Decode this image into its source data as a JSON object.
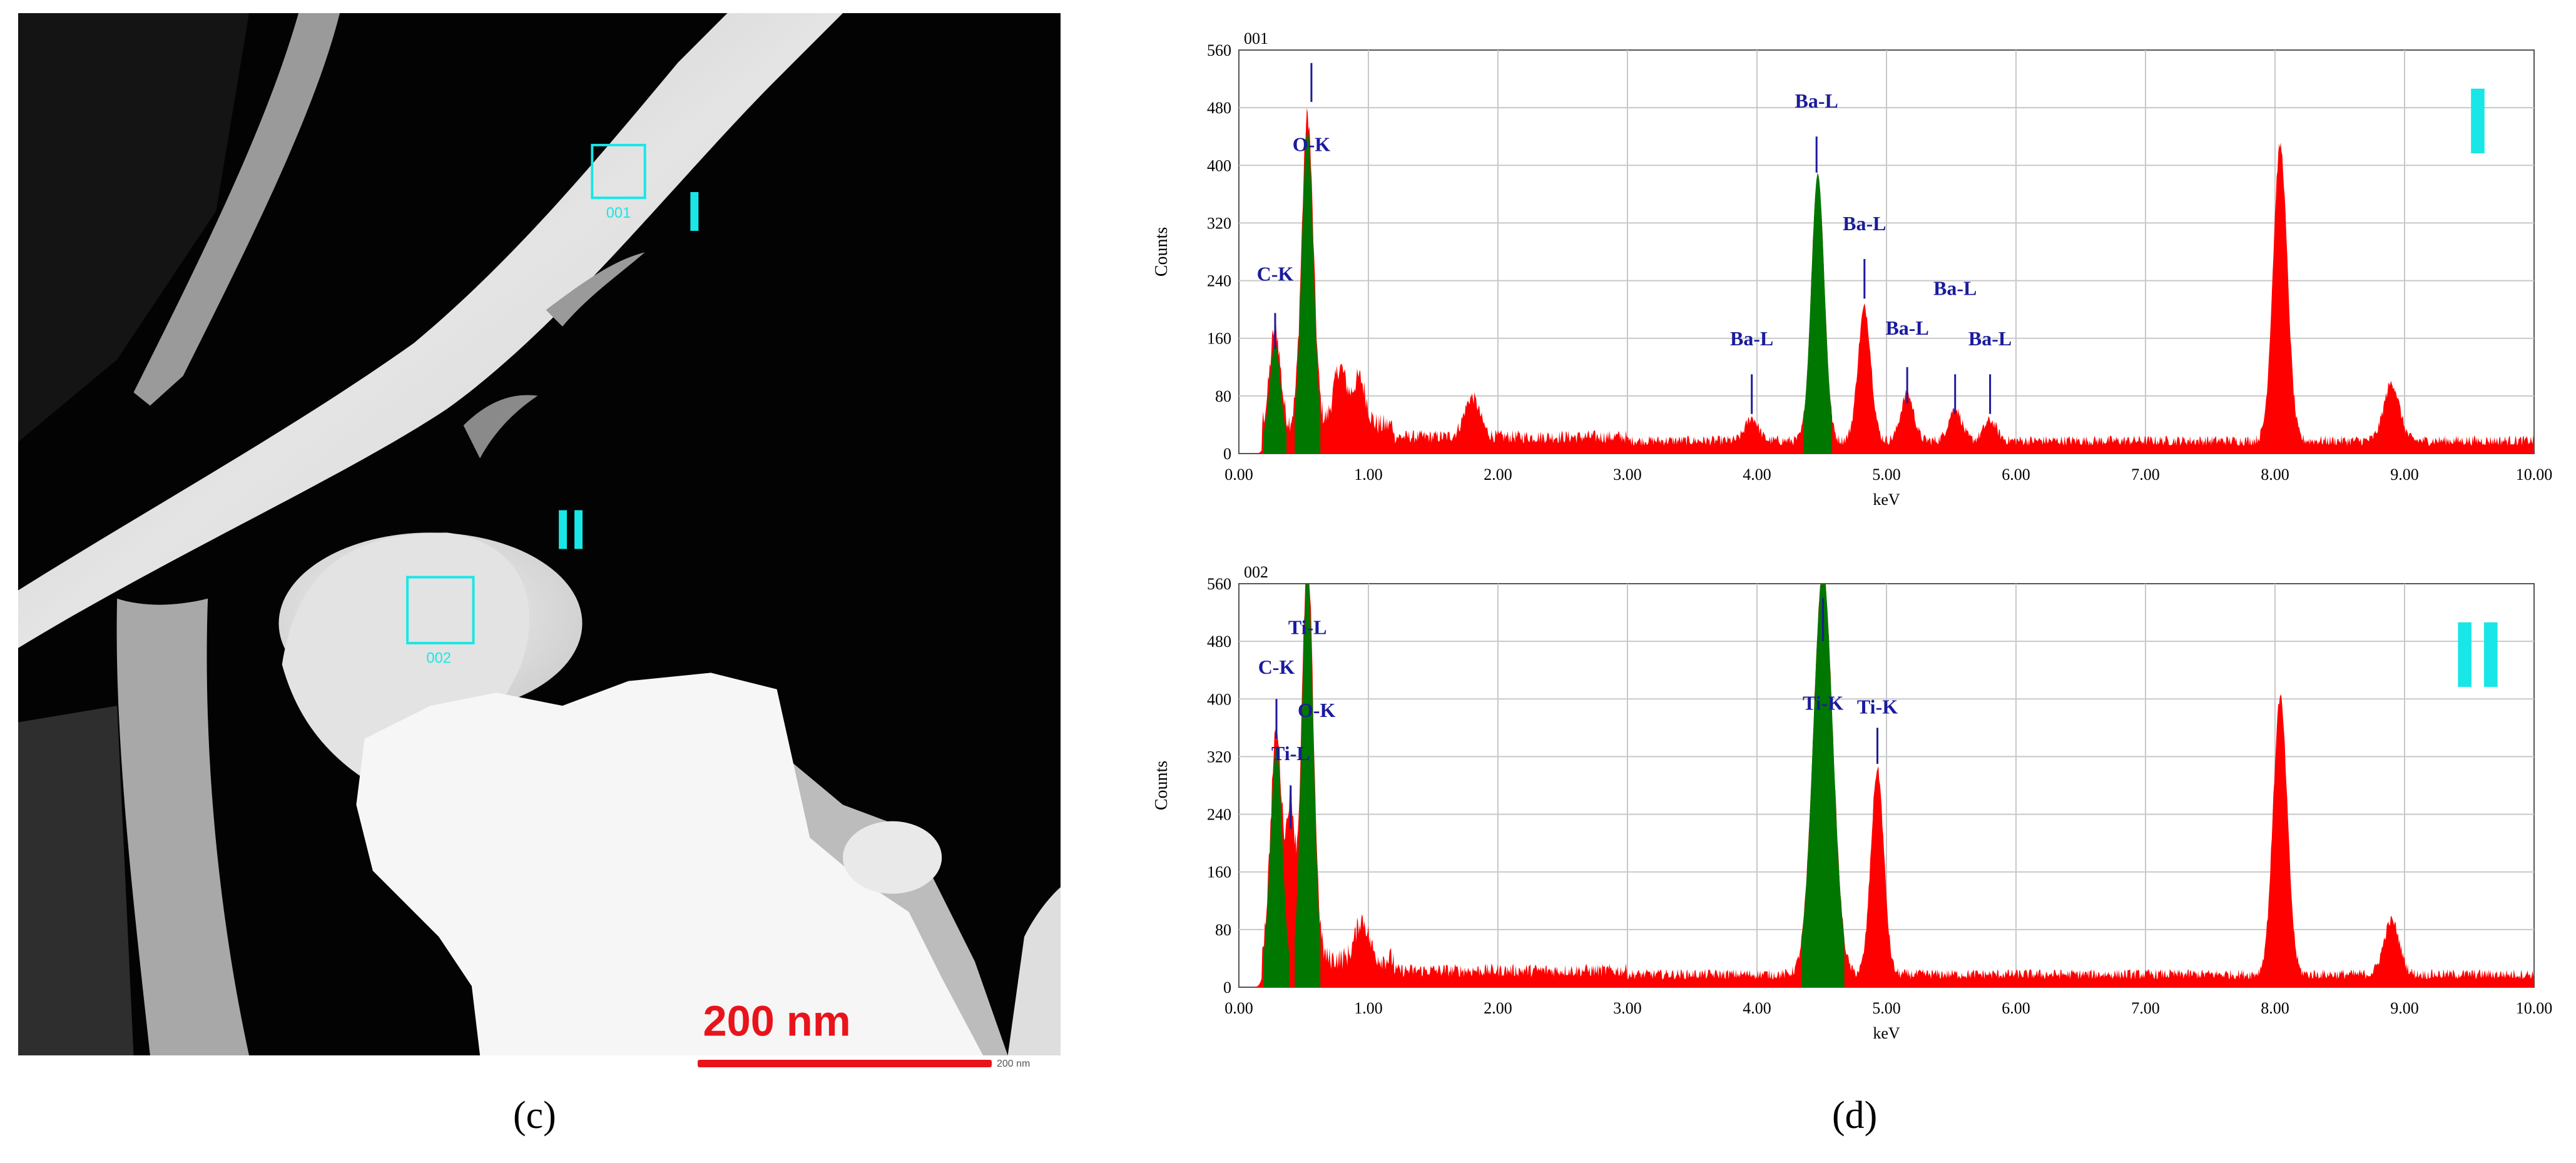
{
  "figure": {
    "label_c": "(c)",
    "label_d": "(d)"
  },
  "micrograph": {
    "region_1": {
      "box_label": "001",
      "roman": "I"
    },
    "region_2": {
      "box_label": "002",
      "roman": "II"
    },
    "scale_bar": {
      "label": "200 nm",
      "small_label": "200 nm"
    },
    "colors": {
      "marker": "#19e6e6",
      "scale": "#e8141c"
    }
  },
  "chart_data": [
    {
      "type": "area",
      "title": "001",
      "panel_mark": "I",
      "xlabel": "keV",
      "ylabel": "Counts",
      "xlim": [
        0,
        10
      ],
      "ylim": [
        0,
        560
      ],
      "xticks": [
        "0.00",
        "1.00",
        "2.00",
        "3.00",
        "4.00",
        "5.00",
        "6.00",
        "7.00",
        "8.00",
        "9.00",
        "10.00"
      ],
      "yticks": [
        "0",
        "80",
        "160",
        "240",
        "320",
        "400",
        "480",
        "560"
      ],
      "grid": true,
      "colors": {
        "spectrum": "#ff0000",
        "assigned": "#007700",
        "label": "#1b1b9c",
        "mark": "#19e6e6"
      },
      "background": 18,
      "peaks": [
        {
          "keV": 0.28,
          "counts": 135,
          "width": 0.04,
          "assigned": true
        },
        {
          "keV": 0.53,
          "counts": 430,
          "width": 0.045,
          "assigned": true
        },
        {
          "keV": 0.78,
          "counts": 80,
          "width": 0.05,
          "assigned": false
        },
        {
          "keV": 0.93,
          "counts": 65,
          "width": 0.05,
          "assigned": false
        },
        {
          "keV": 1.8,
          "counts": 55,
          "width": 0.06,
          "assigned": false
        },
        {
          "keV": 3.96,
          "counts": 32,
          "width": 0.05,
          "assigned": false
        },
        {
          "keV": 4.47,
          "counts": 370,
          "width": 0.05,
          "assigned": true
        },
        {
          "keV": 4.83,
          "counts": 185,
          "width": 0.05,
          "assigned": false
        },
        {
          "keV": 5.16,
          "counts": 65,
          "width": 0.05,
          "assigned": false
        },
        {
          "keV": 5.53,
          "counts": 45,
          "width": 0.05,
          "assigned": false
        },
        {
          "keV": 5.8,
          "counts": 28,
          "width": 0.05,
          "assigned": false
        },
        {
          "keV": 8.04,
          "counts": 410,
          "width": 0.055,
          "assigned": false
        },
        {
          "keV": 8.9,
          "counts": 80,
          "width": 0.06,
          "assigned": false
        }
      ],
      "annotations": [
        {
          "text": "O-K",
          "keV": 0.56,
          "text_y": 420,
          "line_top": 542,
          "line_bottom": 488
        },
        {
          "text": "C-K",
          "keV": 0.28,
          "text_y": 240,
          "line_top": 195,
          "line_bottom": 145
        },
        {
          "text": "Ba-L",
          "keV": 4.46,
          "text_y": 480,
          "line_top": 440,
          "line_bottom": 390
        },
        {
          "text": "Ba-L",
          "keV": 4.83,
          "text_y": 310,
          "line_top": 270,
          "line_bottom": 215
        },
        {
          "text": "Ba-L",
          "keV": 3.96,
          "text_y": 150,
          "line_top": 110,
          "line_bottom": 55
        },
        {
          "text": "Ba-L",
          "keV": 5.16,
          "text_y": 165,
          "line_top": 120,
          "line_bottom": 70
        },
        {
          "text": "Ba-L",
          "keV": 5.53,
          "text_y": 220,
          "line_top": 110,
          "line_bottom": 55
        },
        {
          "text": "Ba-L",
          "keV": 5.8,
          "text_y": 150,
          "line_top": 110,
          "line_bottom": 55
        }
      ]
    },
    {
      "type": "area",
      "title": "002",
      "panel_mark": "II",
      "xlabel": "keV",
      "ylabel": "Counts",
      "xlim": [
        0,
        10
      ],
      "ylim": [
        0,
        560
      ],
      "xticks": [
        "0.00",
        "1.00",
        "2.00",
        "3.00",
        "4.00",
        "5.00",
        "6.00",
        "7.00",
        "8.00",
        "9.00",
        "10.00"
      ],
      "yticks": [
        "0",
        "80",
        "160",
        "240",
        "320",
        "400",
        "480",
        "560"
      ],
      "grid": true,
      "colors": {
        "spectrum": "#ff0000",
        "assigned": "#007700",
        "label": "#1b1b9c",
        "mark": "#19e6e6"
      },
      "background": 18,
      "peaks": [
        {
          "keV": 0.29,
          "counts": 315,
          "width": 0.045,
          "assigned": true
        },
        {
          "keV": 0.4,
          "counts": 205,
          "width": 0.03,
          "assigned": false
        },
        {
          "keV": 0.53,
          "counts": 560,
          "width": 0.045,
          "assigned": true
        },
        {
          "keV": 0.95,
          "counts": 55,
          "width": 0.05,
          "assigned": false
        },
        {
          "keV": 4.51,
          "counts": 560,
          "width": 0.075,
          "assigned": true
        },
        {
          "keV": 4.93,
          "counts": 285,
          "width": 0.05,
          "assigned": false
        },
        {
          "keV": 8.04,
          "counts": 385,
          "width": 0.055,
          "assigned": false
        },
        {
          "keV": 8.9,
          "counts": 75,
          "width": 0.06,
          "assigned": false
        }
      ],
      "annotations": [
        {
          "text": "Ti-L",
          "keV": 0.53,
          "text_y": 490,
          "line_top": 0,
          "line_bottom": 0
        },
        {
          "text": "C-K",
          "keV": 0.29,
          "text_y": 435,
          "line_top": 400,
          "line_bottom": 345
        },
        {
          "text": "O-K",
          "keV": 0.6,
          "text_y": 375,
          "line_top": 0,
          "line_bottom": 0
        },
        {
          "text": "Ti-L",
          "keV": 0.4,
          "text_y": 315,
          "line_top": 280,
          "line_bottom": 220
        },
        {
          "text": "Ti-K",
          "keV": 4.51,
          "text_y": 385,
          "line_top": 540,
          "line_bottom": 480
        },
        {
          "text": "Ti-K",
          "keV": 4.93,
          "text_y": 380,
          "line_top": 360,
          "line_bottom": 310
        }
      ]
    }
  ]
}
